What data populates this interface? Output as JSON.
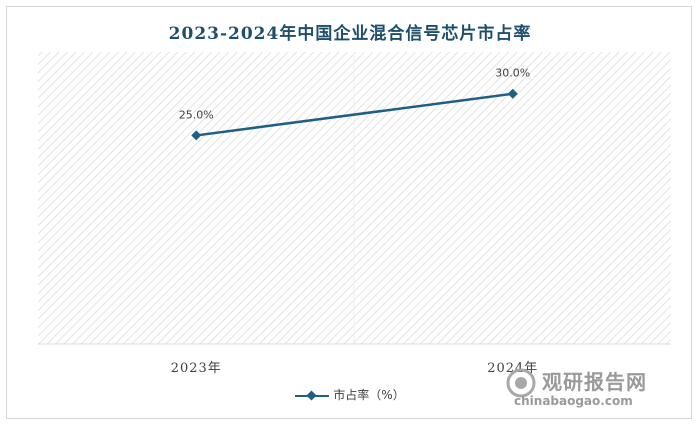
{
  "chart_data": {
    "type": "line",
    "title": "2023-2024年中国企业混合信号芯片市占率",
    "categories": [
      "2023年",
      "2024年"
    ],
    "series": [
      {
        "name": "市占率（%）",
        "values": [
          25.0,
          30.0
        ],
        "labels": [
          "25.0%",
          "30.0%"
        ],
        "color": "#1f5f85"
      }
    ],
    "xlabel": "",
    "ylabel": "",
    "ylim": [
      0,
      35
    ],
    "grid": false,
    "legend_position": "bottom"
  },
  "watermark": {
    "name": "观研报告网",
    "url": "chinabaogao.com"
  }
}
